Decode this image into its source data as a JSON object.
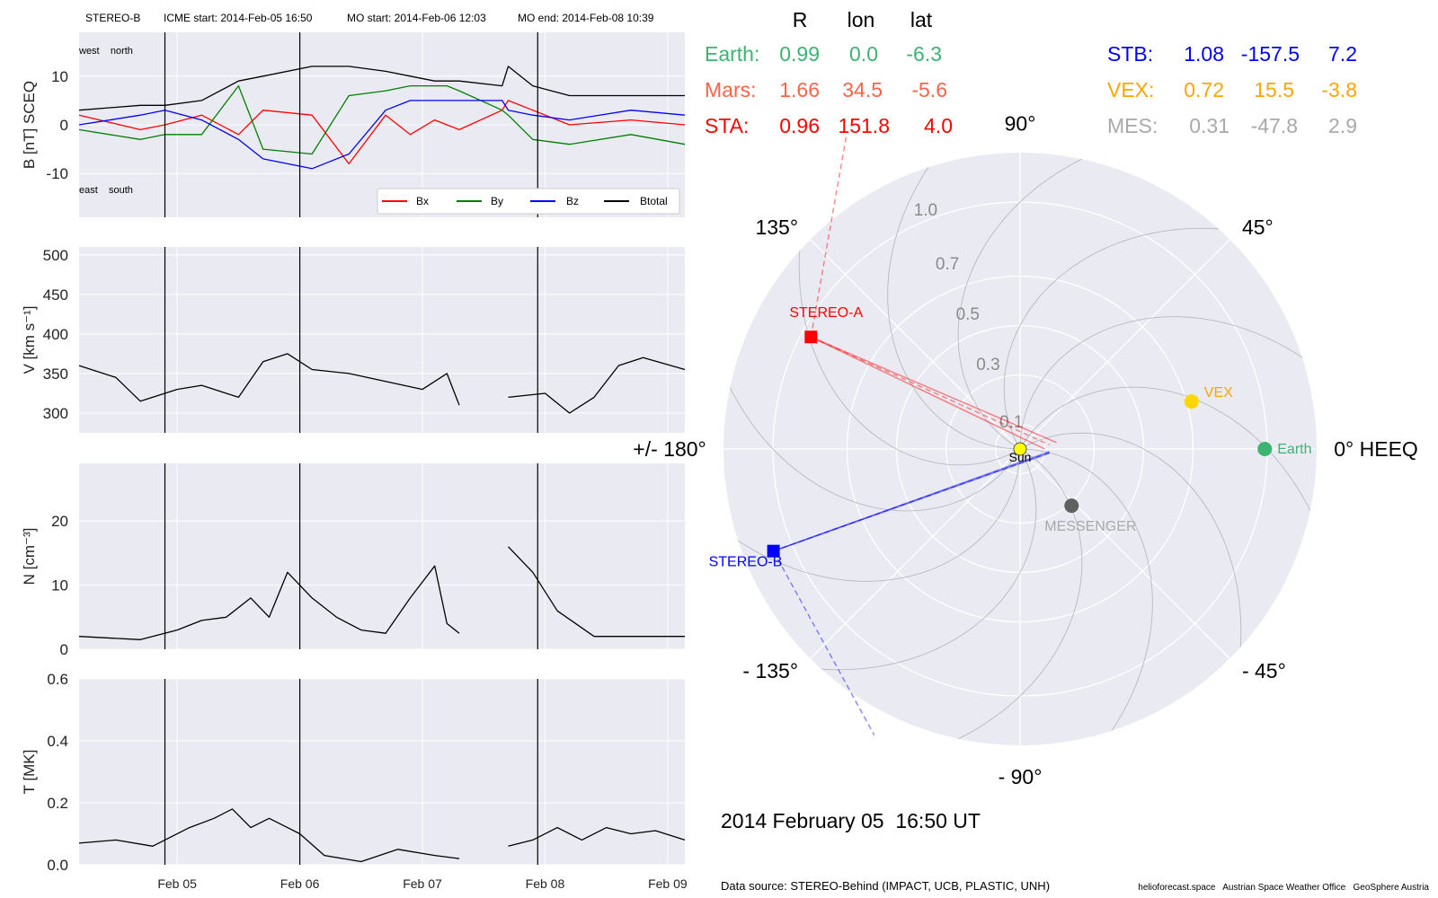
{
  "header": {
    "spacecraft": "STEREO-B",
    "icme_start": "ICME start: 2014-Feb-05 16:50",
    "mo_start": "MO start: 2014-Feb-06 12:03",
    "mo_end": "MO end: 2014-Feb-08 10:39"
  },
  "colors": {
    "bx": "#ff0000",
    "by": "#008000",
    "bz": "#0000ff",
    "btotal": "#000000",
    "earth": "#3cb371",
    "mars": "#ff6347",
    "sta": "#ff0000",
    "stb": "#0000ff",
    "vex": "#ffa500",
    "mes": "#a9a9a9",
    "panel_bg": "#eaeaf2"
  },
  "chart_data": [
    {
      "type": "line",
      "panel": "B",
      "ylabel": "B [nT] SCEQ",
      "ylim": [
        -19,
        19
      ],
      "yticks": [
        -10,
        0,
        10
      ],
      "annotations": {
        "top_left": "west    north",
        "bottom_left": "east    south"
      },
      "legend": [
        "Bx",
        "By",
        "Bz",
        "Btotal"
      ],
      "legend_position": "lower-right",
      "x_days": [
        0,
        0.5,
        0.7,
        1.0,
        1.3,
        1.5,
        1.9,
        2.2,
        2.5,
        2.7,
        2.9,
        3.0,
        3.1,
        3.45,
        3.5,
        3.7,
        4.0,
        4.5,
        4.94
      ],
      "series": [
        {
          "name": "Bx",
          "values": [
            2,
            -1,
            0,
            2,
            -2,
            3,
            2,
            -8,
            2,
            -2,
            1,
            0,
            -1,
            3,
            5,
            3,
            0,
            1,
            0
          ]
        },
        {
          "name": "By",
          "values": [
            -1,
            -3,
            -2,
            -2,
            8,
            -5,
            -6,
            6,
            7,
            8,
            8,
            8,
            7,
            3,
            2,
            -3,
            -4,
            -2,
            -4
          ]
        },
        {
          "name": "Bz",
          "values": [
            0,
            2,
            3,
            1,
            -3,
            -7,
            -9,
            -6,
            3,
            5,
            5,
            5,
            5,
            5,
            3,
            2,
            1,
            3,
            2
          ]
        },
        {
          "name": "Btotal",
          "values": [
            3,
            4,
            4,
            5,
            9,
            10,
            12,
            12,
            11,
            10,
            9,
            9,
            9,
            8,
            12,
            8,
            6,
            6,
            6
          ]
        }
      ]
    },
    {
      "type": "line",
      "panel": "V",
      "ylabel": "V [km s⁻¹]",
      "ylim": [
        275,
        510
      ],
      "yticks": [
        300,
        350,
        400,
        450,
        500
      ],
      "x_days": [
        0,
        0.3,
        0.5,
        0.8,
        1.0,
        1.3,
        1.5,
        1.7,
        1.9,
        2.2,
        2.5,
        2.8,
        3.0,
        3.1,
        3.45,
        3.5,
        3.8,
        4.0,
        4.2,
        4.4,
        4.6,
        4.94
      ],
      "series": [
        {
          "name": "V",
          "values": [
            360,
            345,
            315,
            330,
            335,
            320,
            365,
            375,
            355,
            350,
            340,
            330,
            350,
            310,
            null,
            320,
            325,
            300,
            320,
            360,
            370,
            355
          ]
        }
      ]
    },
    {
      "type": "line",
      "panel": "N",
      "ylabel": "N [cm⁻³]",
      "ylim": [
        0,
        29
      ],
      "yticks": [
        0,
        10,
        20
      ],
      "x_days": [
        0,
        0.5,
        0.8,
        1.0,
        1.2,
        1.4,
        1.55,
        1.7,
        1.9,
        2.1,
        2.3,
        2.5,
        2.7,
        2.9,
        3.0,
        3.1,
        3.45,
        3.5,
        3.7,
        3.9,
        4.2,
        4.5,
        4.94
      ],
      "series": [
        {
          "name": "N",
          "values": [
            2,
            1.5,
            3,
            4.5,
            5,
            8,
            5,
            12,
            8,
            5,
            3,
            2.5,
            8,
            13,
            4,
            2.5,
            null,
            16,
            12,
            6,
            2,
            2,
            2
          ]
        }
      ]
    },
    {
      "type": "line",
      "panel": "T",
      "ylabel": "T [MK]",
      "ylim": [
        0,
        0.6
      ],
      "yticks": [
        0.0,
        0.2,
        0.4,
        0.6
      ],
      "x_days": [
        0,
        0.3,
        0.6,
        0.9,
        1.1,
        1.25,
        1.4,
        1.55,
        1.7,
        1.8,
        2.0,
        2.3,
        2.6,
        2.9,
        3.1,
        3.45,
        3.5,
        3.7,
        3.9,
        4.1,
        4.3,
        4.5,
        4.7,
        4.94
      ],
      "series": [
        {
          "name": "T",
          "values": [
            0.07,
            0.08,
            0.06,
            0.12,
            0.15,
            0.18,
            0.12,
            0.15,
            0.12,
            0.1,
            0.03,
            0.01,
            0.05,
            0.03,
            0.02,
            null,
            0.06,
            0.08,
            0.12,
            0.08,
            0.12,
            0.1,
            0.11,
            0.08
          ]
        }
      ]
    },
    {
      "type": "scatter",
      "panel": "polar",
      "projection": "polar",
      "orientation_labels": [
        "90°",
        "45°",
        "0° HEEQ",
        "- 45°",
        "- 90°",
        "- 135°",
        "+/- 180°",
        "135°"
      ],
      "radial_ticks": [
        "0.1",
        "0.3",
        "0.5",
        "0.7",
        "1.0"
      ],
      "bodies": [
        {
          "name": "Sun",
          "r": 0,
          "lon": 0
        },
        {
          "name": "Earth",
          "r": 0.99,
          "lon": 0.0
        },
        {
          "name": "VEX",
          "r": 0.72,
          "lon": 15.5
        },
        {
          "name": "MESSENGER",
          "r": 0.31,
          "lon": -47.8
        },
        {
          "name": "STEREO-A",
          "r": 0.96,
          "lon": 151.8
        },
        {
          "name": "STEREO-B",
          "r": 1.08,
          "lon": -157.5
        }
      ]
    }
  ],
  "xaxis": {
    "ticks": [
      "Feb 05",
      "Feb 06",
      "Feb 07",
      "Feb 08",
      "Feb 09"
    ]
  },
  "positions_table": {
    "headers": [
      "R",
      "lon",
      "lat"
    ],
    "rows": [
      {
        "name": "Earth:",
        "R": "0.99",
        "lon": "0.0",
        "lat": "-6.3"
      },
      {
        "name": "Mars:",
        "R": "1.66",
        "lon": "34.5",
        "lat": "-5.6"
      },
      {
        "name": "STA:",
        "R": "0.96",
        "lon": "151.8",
        "lat": "4.0"
      },
      {
        "name": "STB:",
        "R": "1.08",
        "lon": "-157.5",
        "lat": "7.2"
      },
      {
        "name": "VEX:",
        "R": "0.72",
        "lon": "15.5",
        "lat": "-3.8"
      },
      {
        "name": "MES:",
        "R": "0.31",
        "lon": "-47.8",
        "lat": "2.9"
      }
    ]
  },
  "polar_labels": {
    "sun": "Sun",
    "earth": "Earth",
    "vex": "VEX",
    "messenger": "MESSENGER",
    "sta": "STEREO-A",
    "stb": "STEREO-B"
  },
  "footer": {
    "timestamp": "2014 February 05  16:50 UT",
    "source": "Data source: STEREO-Behind (IMPACT, UCB, PLASTIC, UNH)",
    "credits": "helioforecast.space   Austrian Space Weather Office   GeoSphere Austria"
  }
}
